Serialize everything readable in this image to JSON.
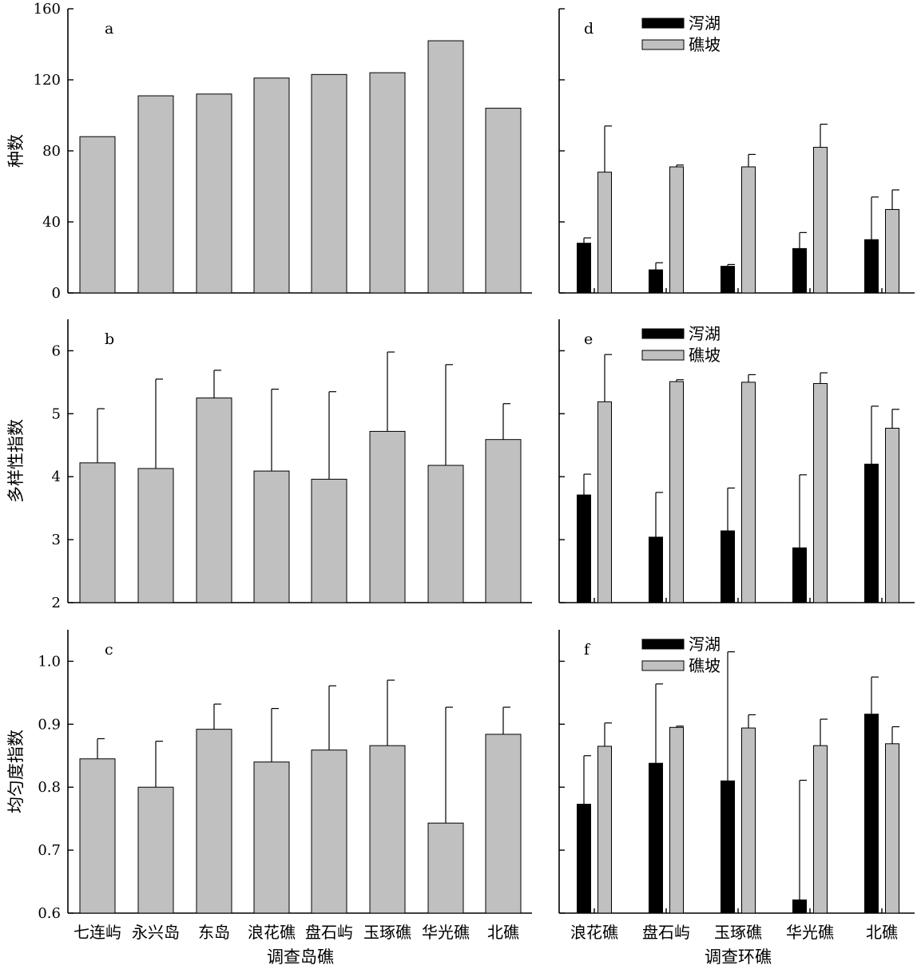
{
  "figure": {
    "xlabel_left": "调查岛礁",
    "xlabel_right": "调查环礁"
  },
  "colors": {
    "lagoon": "#000000",
    "slope": "#c0c0c0",
    "single": "#c0c0c0",
    "axis": "#000000"
  },
  "chart_data": [
    {
      "panel": "a",
      "type": "bar",
      "title": "a",
      "xlabel": "",
      "ylabel": "种数",
      "ylim": [
        0,
        160
      ],
      "yticks": [
        "0",
        "40",
        "80",
        "120",
        "160"
      ],
      "ytick_values": [
        0,
        40,
        80,
        120,
        160
      ],
      "categories": [
        "七连屿",
        "永兴岛",
        "东岛",
        "浪花礁",
        "盘石屿",
        "玉琢礁",
        "华光礁",
        "北礁"
      ],
      "show_categories": false,
      "series": [
        {
          "values": [
            88,
            111,
            112,
            121,
            123,
            124,
            142,
            104
          ],
          "errors": [
            0,
            0,
            0,
            0,
            0,
            0,
            0,
            0
          ]
        }
      ],
      "legend": []
    },
    {
      "panel": "b",
      "type": "bar",
      "title": "b",
      "xlabel": "",
      "ylabel": "多样性指数",
      "ylim": [
        2,
        6.5
      ],
      "yticks": [
        "2",
        "3",
        "4",
        "5",
        "6"
      ],
      "ytick_values": [
        2,
        3,
        4,
        5,
        6
      ],
      "categories": [
        "七连屿",
        "永兴岛",
        "东岛",
        "浪花礁",
        "盘石屿",
        "玉琢礁",
        "华光礁",
        "北礁"
      ],
      "show_categories": false,
      "series": [
        {
          "values": [
            4.22,
            4.13,
            5.25,
            4.09,
            3.96,
            4.72,
            4.18,
            4.59
          ],
          "errors": [
            0.86,
            1.42,
            0.44,
            1.3,
            1.39,
            1.26,
            1.6,
            0.57
          ]
        }
      ],
      "legend": []
    },
    {
      "panel": "c",
      "type": "bar",
      "title": "c",
      "xlabel": "调查岛礁",
      "ylabel": "均匀度指数",
      "ylim": [
        0.6,
        1.05
      ],
      "yticks": [
        "0.6",
        "0.7",
        "0.8",
        "0.9",
        "1.0"
      ],
      "ytick_values": [
        0.6,
        0.7,
        0.8,
        0.9,
        1.0
      ],
      "categories": [
        "七连屿",
        "永兴岛",
        "东岛",
        "浪花礁",
        "盘石屿",
        "玉琢礁",
        "华光礁",
        "北礁"
      ],
      "show_categories": true,
      "series": [
        {
          "values": [
            0.845,
            0.8,
            0.892,
            0.84,
            0.859,
            0.866,
            0.743,
            0.884
          ],
          "errors": [
            0.032,
            0.073,
            0.04,
            0.085,
            0.102,
            0.104,
            0.184,
            0.043
          ]
        }
      ],
      "legend": []
    },
    {
      "panel": "d",
      "type": "bar",
      "title": "d",
      "xlabel": "",
      "ylabel": "",
      "ylim": [
        0,
        160
      ],
      "yticks": [],
      "ytick_values": [
        0,
        40,
        80,
        120,
        160
      ],
      "categories": [
        "浪花礁",
        "盘石屿",
        "玉琢礁",
        "华光礁",
        "北礁"
      ],
      "show_categories": false,
      "series": [
        {
          "name": "泻湖",
          "values": [
            28,
            13,
            15,
            25,
            30
          ],
          "errors": [
            3,
            4,
            1,
            9,
            24
          ]
        },
        {
          "name": "礁坡",
          "values": [
            68,
            71,
            71,
            82,
            47
          ],
          "errors": [
            26,
            1,
            7,
            13,
            11
          ]
        }
      ],
      "legend": [
        "泻湖",
        "礁坡"
      ]
    },
    {
      "panel": "e",
      "type": "bar",
      "title": "e",
      "xlabel": "",
      "ylabel": "",
      "ylim": [
        2,
        6.5
      ],
      "yticks": [],
      "ytick_values": [
        2,
        3,
        4,
        5,
        6
      ],
      "categories": [
        "浪花礁",
        "盘石屿",
        "玉琢礁",
        "华光礁",
        "北礁"
      ],
      "show_categories": false,
      "series": [
        {
          "name": "泻湖",
          "values": [
            3.71,
            3.04,
            3.14,
            2.87,
            4.2
          ],
          "errors": [
            0.33,
            0.71,
            0.68,
            1.16,
            0.92
          ]
        },
        {
          "name": "礁坡",
          "values": [
            5.19,
            5.51,
            5.5,
            5.48,
            4.77
          ],
          "errors": [
            0.75,
            0.03,
            0.12,
            0.17,
            0.3
          ]
        }
      ],
      "legend": [
        "泻湖",
        "礁坡"
      ]
    },
    {
      "panel": "f",
      "type": "bar",
      "title": "f",
      "xlabel": "调查环礁",
      "ylabel": "",
      "ylim": [
        0.6,
        1.05
      ],
      "yticks": [],
      "ytick_values": [
        0.6,
        0.7,
        0.8,
        0.9,
        1.0
      ],
      "categories": [
        "浪花礁",
        "盘石屿",
        "玉琢礁",
        "华光礁",
        "北礁"
      ],
      "show_categories": true,
      "series": [
        {
          "name": "泻湖",
          "values": [
            0.773,
            0.838,
            0.81,
            0.621,
            0.916
          ],
          "errors": [
            0.077,
            0.126,
            0.205,
            0.19,
            0.059
          ]
        },
        {
          "name": "礁坡",
          "values": [
            0.865,
            0.895,
            0.894,
            0.866,
            0.869
          ],
          "errors": [
            0.037,
            0.002,
            0.021,
            0.042,
            0.027
          ]
        }
      ],
      "legend": [
        "泻湖",
        "礁坡"
      ]
    }
  ]
}
